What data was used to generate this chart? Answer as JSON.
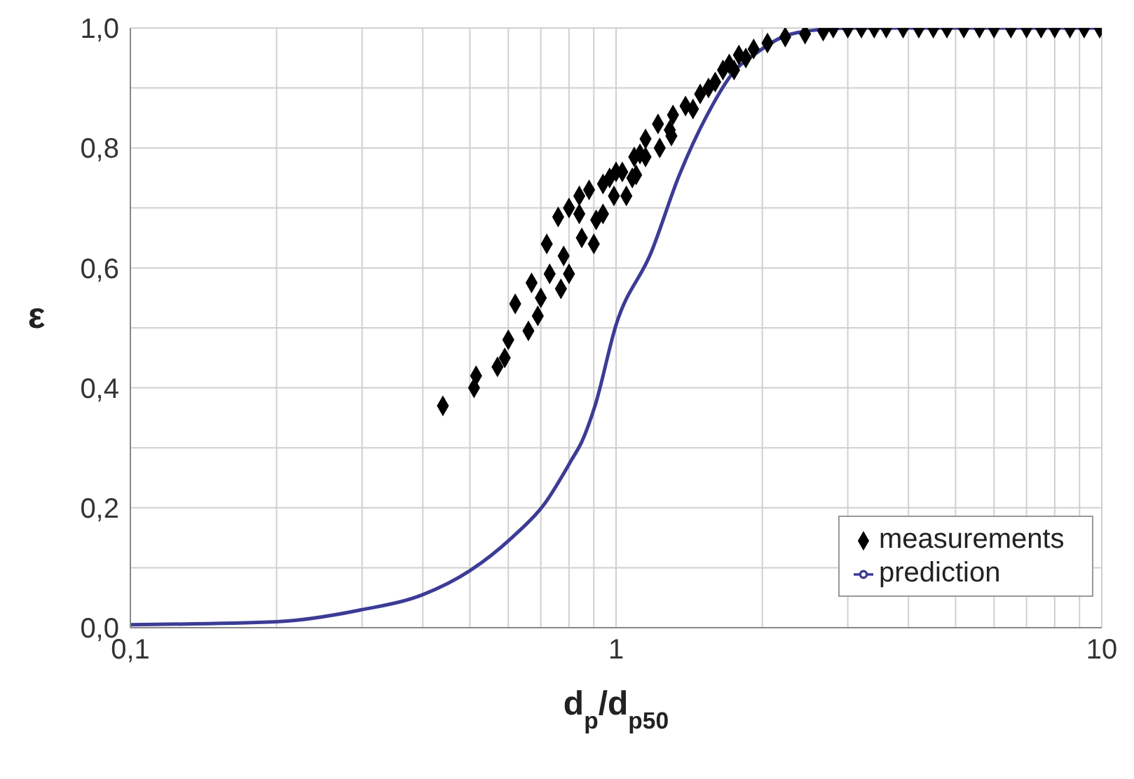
{
  "chart_data": {
    "type": "scatter",
    "xlabel": "d$_{p}$/d$_{p50}$",
    "ylabel": "ε",
    "log": "x",
    "grid": true,
    "legend": "bottom right",
    "xlim": [
      0.1,
      10
    ],
    "xticks": [
      {
        "value": 0.1,
        "label": "0,1"
      },
      {
        "value": 0.2,
        "label": null
      },
      {
        "value": 0.3,
        "label": null
      },
      {
        "value": 0.4,
        "label": null
      },
      {
        "value": 0.5,
        "label": null
      },
      {
        "value": 0.6,
        "label": null
      },
      {
        "value": 0.7,
        "label": null
      },
      {
        "value": 0.8,
        "label": null
      },
      {
        "value": 0.9,
        "label": null
      },
      1,
      {
        "value": 2,
        "label": null
      },
      {
        "value": 3,
        "label": null
      },
      {
        "value": 4,
        "label": null
      },
      {
        "value": 5,
        "label": null
      },
      {
        "value": 6,
        "label": null
      },
      {
        "value": 7,
        "label": null
      },
      {
        "value": 8,
        "label": null
      },
      {
        "value": 9,
        "label": null
      },
      10
    ],
    "ylim": [
      0,
      1
    ],
    "yticks": [
      {
        "value": 0,
        "label": "0,0"
      },
      {
        "value": 0.1,
        "label": null
      },
      {
        "value": 0.2,
        "label": "0,2"
      },
      {
        "value": 0.3,
        "label": null
      },
      {
        "value": 0.4,
        "label": "0,4"
      },
      {
        "value": 0.5,
        "label": null
      },
      {
        "value": 0.6,
        "label": "0,6"
      },
      {
        "value": 0.7,
        "label": null
      },
      {
        "value": 0.8,
        "label": "0,8"
      },
      {
        "value": 0.9,
        "label": null
      },
      {
        "value": 1,
        "label": "1,0"
      }
    ],
    "series": [
      {
        "name": "measurements",
        "type": "scatter",
        "marker": "diamond",
        "color": "#000000",
        "x": [
          0.44,
          0.51,
          0.515,
          0.57,
          0.59,
          0.6,
          0.66,
          0.69,
          0.62,
          0.7,
          0.67,
          0.77,
          0.73,
          0.8,
          0.78,
          0.72,
          0.85,
          0.9,
          0.76,
          0.8,
          0.84,
          0.91,
          0.94,
          0.99,
          1.05,
          0.84,
          0.88,
          0.94,
          0.97,
          1.0,
          1.03,
          1.08,
          1.1,
          1.12,
          1.15,
          1.09,
          1.23,
          1.15,
          1.22,
          1.29,
          1.3,
          1.31,
          1.39,
          1.44,
          1.49,
          1.55,
          1.6,
          1.66,
          1.71,
          1.75,
          1.79,
          1.85,
          1.92,
          2.05,
          2.23,
          2.45,
          2.67,
          2.8,
          3.0,
          3.2,
          3.4,
          3.6,
          3.9,
          4.2,
          4.5,
          4.8,
          5.2,
          5.6,
          6.0,
          6.5,
          7.0,
          7.5,
          8.0,
          8.6,
          9.2,
          9.9
        ],
        "values": [
          0.37,
          0.4,
          0.42,
          0.435,
          0.45,
          0.48,
          0.495,
          0.52,
          0.54,
          0.55,
          0.575,
          0.565,
          0.59,
          0.59,
          0.62,
          0.64,
          0.65,
          0.64,
          0.685,
          0.7,
          0.69,
          0.68,
          0.69,
          0.72,
          0.72,
          0.72,
          0.73,
          0.74,
          0.75,
          0.76,
          0.76,
          0.75,
          0.755,
          0.79,
          0.785,
          0.785,
          0.8,
          0.815,
          0.84,
          0.83,
          0.82,
          0.855,
          0.87,
          0.865,
          0.89,
          0.9,
          0.91,
          0.93,
          0.94,
          0.93,
          0.955,
          0.95,
          0.965,
          0.975,
          0.985,
          0.99,
          0.995,
          1,
          1,
          1,
          1,
          1,
          1,
          1,
          1,
          1,
          1,
          1,
          1,
          1,
          1,
          1,
          1,
          1,
          1,
          1
        ]
      },
      {
        "name": "prediction",
        "type": "line",
        "marker": "none",
        "color": "#3c3c96",
        "x": [
          0.1,
          0.2,
          0.3,
          0.4,
          0.5,
          0.61,
          0.71,
          0.81,
          0.85,
          0.905,
          1.0,
          1.18,
          1.35,
          1.54,
          1.76,
          1.92,
          2.2,
          2.6,
          3.0,
          10
        ],
        "values": [
          0.005,
          0.01,
          0.03,
          0.055,
          0.095,
          0.15,
          0.205,
          0.28,
          0.31,
          0.37,
          0.505,
          0.625,
          0.755,
          0.855,
          0.93,
          0.955,
          0.985,
          0.997,
          1,
          1
        ]
      }
    ]
  }
}
